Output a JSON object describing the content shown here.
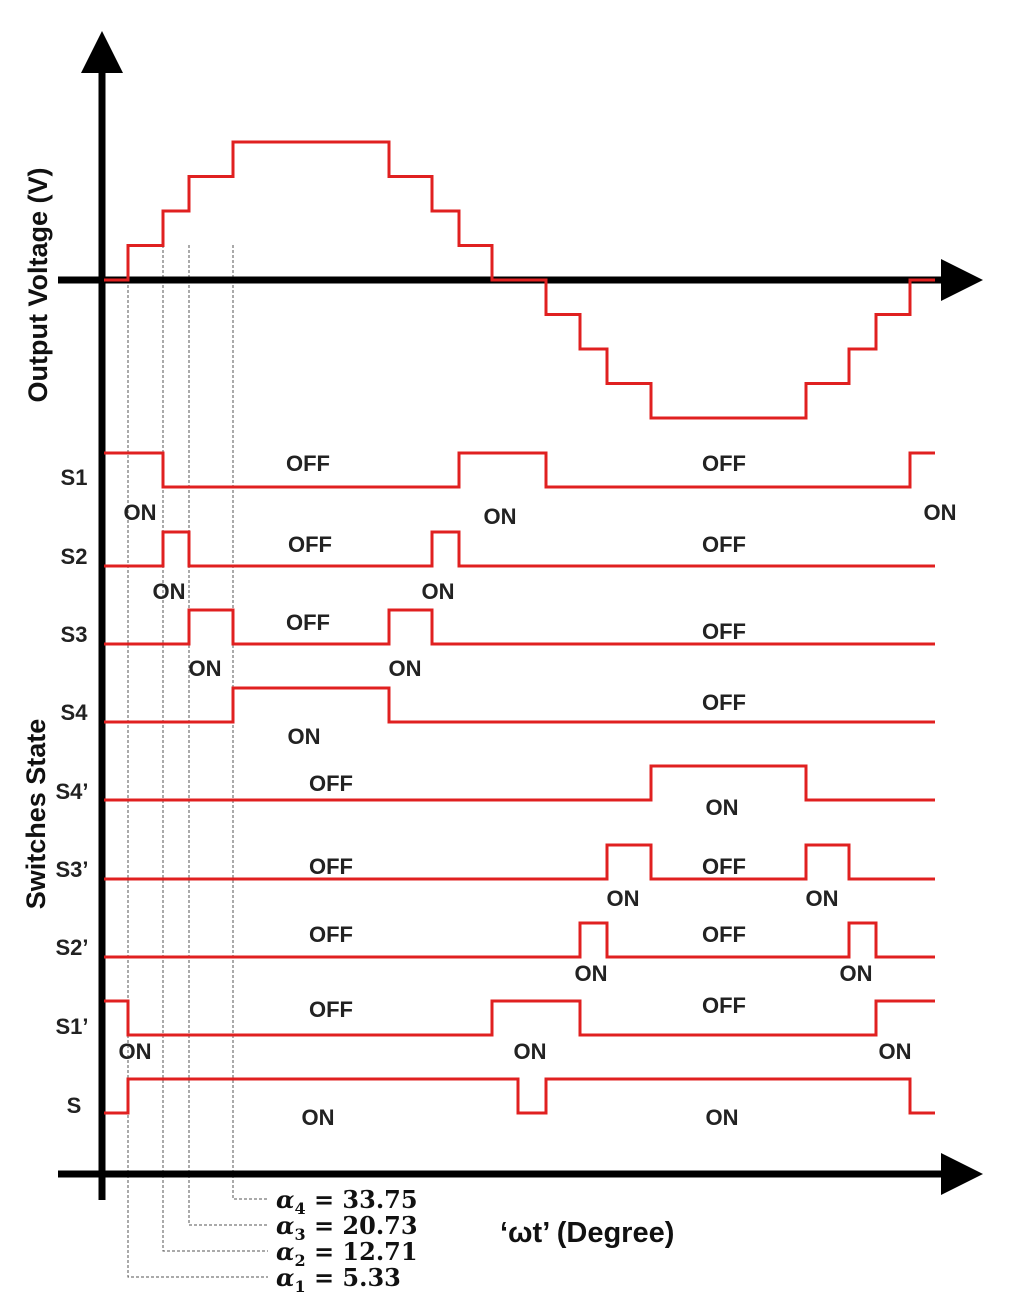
{
  "axes": {
    "y_label": "Output Voltage (V)",
    "x_label": "‘ωt’ (Degree)",
    "switch_axis_label": "Switches State"
  },
  "colors": {
    "waveform": "#e02020",
    "axis": "#000000",
    "guide": "#555555"
  },
  "switching_angles": [
    {
      "symbol": "α",
      "sub": "1",
      "value": "5.33"
    },
    {
      "symbol": "α",
      "sub": "2",
      "value": "12.71"
    },
    {
      "symbol": "α",
      "sub": "3",
      "value": "20.73"
    },
    {
      "symbol": "α",
      "sub": "4",
      "value": "33.75"
    }
  ],
  "output_voltage": {
    "levels": [
      0,
      1,
      2,
      3,
      4,
      3,
      2,
      1,
      0,
      -1,
      -2,
      -3,
      -4,
      -3,
      -2,
      -1,
      0
    ]
  },
  "switches": [
    {
      "name": "S1",
      "states": [
        {
          "state": "ON",
          "text": "ON"
        },
        {
          "state": "OFF",
          "text": "OFF"
        },
        {
          "state": "ON",
          "text": "ON"
        },
        {
          "state": "OFF",
          "text": "OFF"
        },
        {
          "state": "ON",
          "text": "ON"
        }
      ]
    },
    {
      "name": "S2",
      "states": [
        {
          "state": "OFF",
          "text": ""
        },
        {
          "state": "ON",
          "text": "ON"
        },
        {
          "state": "OFF",
          "text": "OFF"
        },
        {
          "state": "ON",
          "text": "ON"
        },
        {
          "state": "OFF",
          "text": "OFF"
        }
      ]
    },
    {
      "name": "S3",
      "states": [
        {
          "state": "OFF",
          "text": ""
        },
        {
          "state": "ON",
          "text": "ON"
        },
        {
          "state": "OFF",
          "text": "OFF"
        },
        {
          "state": "ON",
          "text": "ON"
        },
        {
          "state": "OFF",
          "text": "OFF"
        }
      ]
    },
    {
      "name": "S4",
      "states": [
        {
          "state": "OFF",
          "text": ""
        },
        {
          "state": "ON",
          "text": "ON"
        },
        {
          "state": "OFF",
          "text": "OFF"
        }
      ]
    },
    {
      "name": "S4’",
      "states": [
        {
          "state": "OFF",
          "text": "OFF"
        },
        {
          "state": "ON",
          "text": "ON"
        },
        {
          "state": "OFF",
          "text": ""
        }
      ]
    },
    {
      "name": "S3’",
      "states": [
        {
          "state": "OFF",
          "text": "OFF"
        },
        {
          "state": "ON",
          "text": "ON"
        },
        {
          "state": "OFF",
          "text": "OFF"
        },
        {
          "state": "ON",
          "text": "ON"
        },
        {
          "state": "OFF",
          "text": ""
        }
      ]
    },
    {
      "name": "S2’",
      "states": [
        {
          "state": "OFF",
          "text": "OFF"
        },
        {
          "state": "ON",
          "text": "ON"
        },
        {
          "state": "OFF",
          "text": "OFF"
        },
        {
          "state": "ON",
          "text": "ON"
        },
        {
          "state": "OFF",
          "text": ""
        }
      ]
    },
    {
      "name": "S1’",
      "states": [
        {
          "state": "ON",
          "text": "ON"
        },
        {
          "state": "OFF",
          "text": "OFF"
        },
        {
          "state": "ON",
          "text": "ON"
        },
        {
          "state": "OFF",
          "text": "OFF"
        },
        {
          "state": "ON",
          "text": "ON"
        }
      ]
    },
    {
      "name": "S",
      "states": [
        {
          "state": "OFF",
          "text": ""
        },
        {
          "state": "ON",
          "text": "ON"
        },
        {
          "state": "OFF",
          "text": ""
        },
        {
          "state": "ON",
          "text": "ON"
        },
        {
          "state": "OFF",
          "text": ""
        }
      ]
    }
  ]
}
